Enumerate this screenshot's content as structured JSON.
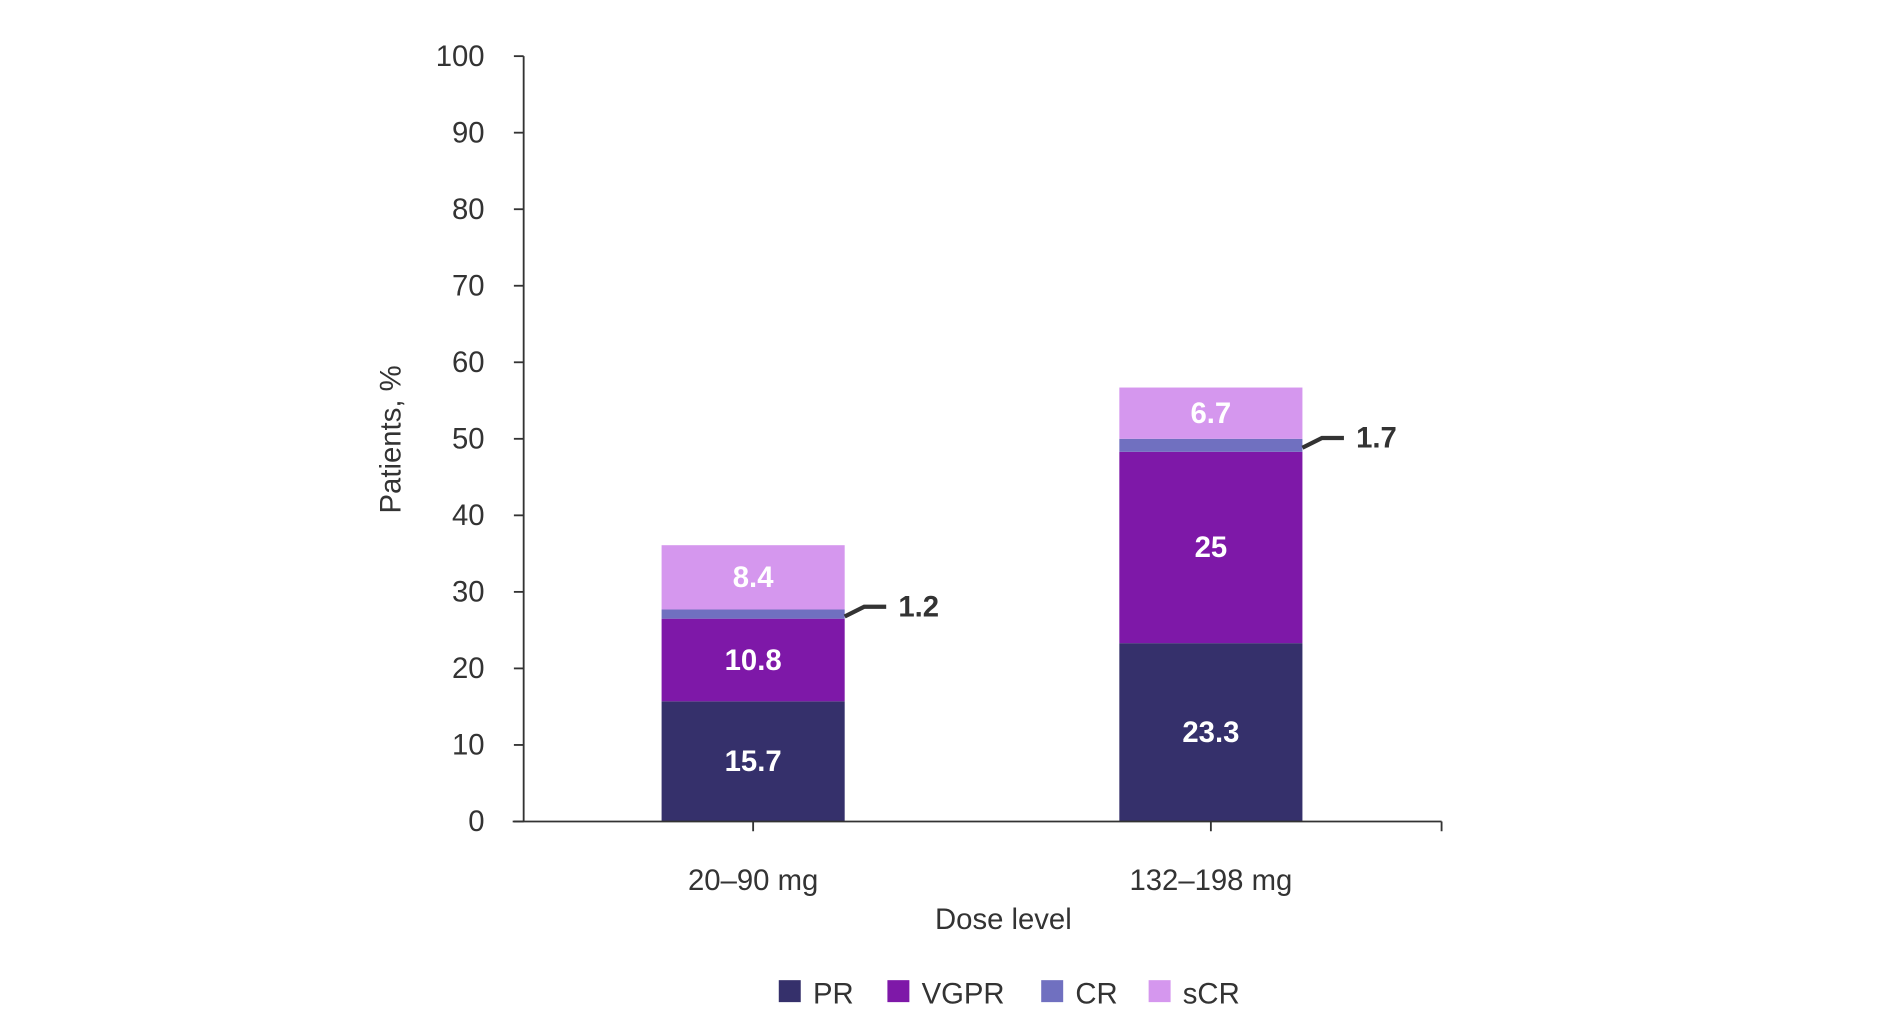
{
  "chart_data": {
    "type": "bar",
    "stacked": true,
    "title": "",
    "xlabel": "Dose level",
    "ylabel": "Patients, %",
    "ylim": [
      0,
      100
    ],
    "yticks": [
      0,
      10,
      20,
      30,
      40,
      50,
      60,
      70,
      80,
      90,
      100
    ],
    "categories": [
      "20–90 mg",
      "132–198 mg"
    ],
    "series": [
      {
        "name": "PR",
        "color": "#35306b",
        "values": [
          15.7,
          23.3
        ]
      },
      {
        "name": "VGPR",
        "color": "#7e18a8",
        "values": [
          10.8,
          25
        ]
      },
      {
        "name": "CR",
        "color": "#7070c0",
        "values": [
          1.2,
          1.7
        ]
      },
      {
        "name": "sCR",
        "color": "#d597ee",
        "values": [
          8.4,
          6.7
        ]
      }
    ],
    "legend_position": "bottom",
    "grid": false
  }
}
